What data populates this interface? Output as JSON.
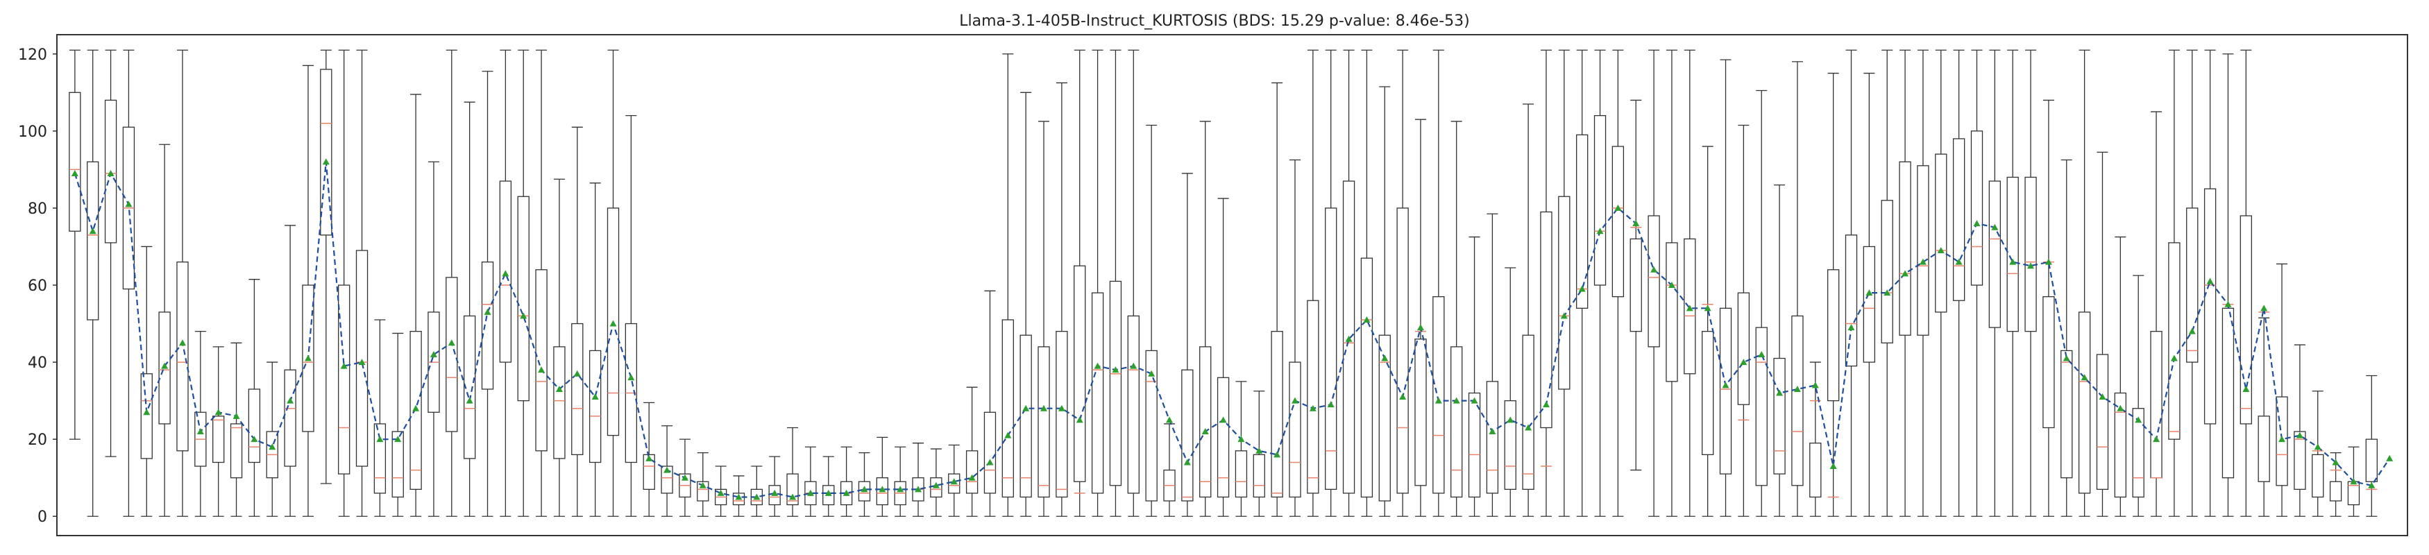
{
  "chart_data": {
    "type": "box",
    "title": "Llama-3.1-405B-Instruct_KURTOSIS (BDS: 15.29 p-value: 8.46e-53)",
    "xlabel": "",
    "ylabel": "",
    "ylim": [
      -5,
      125
    ],
    "yticks": [
      0,
      20,
      40,
      60,
      80,
      100,
      120
    ],
    "grid": false,
    "colors": {
      "box": "#333333",
      "median": "#e8826a",
      "mean_marker": "#2ca02c",
      "mean_line": "#1f4e9c"
    },
    "means": [
      89,
      74,
      89,
      81,
      27,
      39,
      45,
      22,
      27,
      26,
      20,
      18,
      30,
      41,
      92,
      39,
      40,
      20,
      20,
      28,
      42,
      45,
      30,
      53,
      63,
      52,
      38,
      33,
      37,
      31,
      50,
      36,
      15,
      12,
      10,
      8,
      6,
      5,
      5,
      6,
      5,
      6,
      6,
      6,
      7,
      7,
      7,
      7,
      8,
      9,
      10,
      14,
      21,
      28,
      28,
      28,
      25,
      39,
      38,
      39,
      37,
      25,
      14,
      22,
      25,
      20,
      17,
      16,
      30,
      28,
      29,
      46,
      51,
      41,
      31,
      49,
      30,
      30,
      30,
      22,
      25,
      23,
      29,
      52,
      59,
      74,
      80,
      76,
      64,
      60,
      54,
      54,
      34,
      40,
      42,
      32,
      33,
      34,
      13,
      49,
      58,
      58,
      63,
      66,
      69,
      66,
      76,
      75,
      66,
      65,
      66,
      41,
      36,
      31,
      28,
      25,
      20,
      41,
      48,
      61,
      55,
      33,
      54,
      20,
      21,
      18,
      14,
      9,
      8,
      15
    ],
    "medians": [
      90,
      73,
      89,
      80,
      30,
      38,
      40,
      20,
      25,
      23,
      18,
      16,
      28,
      40,
      102,
      23,
      40,
      10,
      10,
      12,
      40,
      36,
      28,
      55,
      60,
      52,
      35,
      30,
      28,
      26,
      32,
      32,
      13,
      10,
      8,
      7,
      5,
      4,
      4,
      5,
      4,
      6,
      6,
      6,
      6,
      6,
      6,
      7,
      7,
      8,
      9,
      12,
      10,
      10,
      8,
      7,
      6,
      38,
      37,
      38,
      35,
      8,
      5,
      9,
      10,
      9,
      8,
      6,
      14,
      10,
      17,
      45,
      51,
      40,
      23,
      48,
      21,
      12,
      16,
      12,
      13,
      11,
      13,
      52,
      59,
      74,
      80,
      75,
      62,
      60,
      52,
      55,
      33,
      25,
      40,
      17,
      22,
      30,
      5,
      50,
      54,
      58,
      63,
      65,
      69,
      65,
      70,
      72,
      63,
      66,
      66,
      40,
      35,
      18,
      27,
      10,
      10,
      22,
      43,
      60,
      55,
      28,
      53,
      16,
      20,
      17,
      12,
      8,
      7,
      13
    ],
    "box_ranges": [
      [
        74,
        110
      ],
      [
        51,
        92
      ],
      [
        71,
        108
      ],
      [
        59,
        101
      ],
      [
        15,
        37
      ],
      [
        24,
        53
      ],
      [
        17,
        66
      ],
      [
        13,
        27
      ],
      [
        14,
        26
      ],
      [
        10,
        24
      ],
      [
        14,
        33
      ],
      [
        10,
        22
      ],
      [
        13,
        38
      ],
      [
        22,
        60
      ],
      [
        73,
        116
      ],
      [
        11,
        60
      ],
      [
        13,
        69
      ],
      [
        6,
        24
      ],
      [
        5,
        22
      ],
      [
        7,
        48
      ],
      [
        27,
        53
      ],
      [
        22,
        62
      ],
      [
        15,
        52
      ],
      [
        33,
        66
      ],
      [
        40,
        87
      ],
      [
        30,
        83
      ],
      [
        17,
        64
      ],
      [
        15,
        44
      ],
      [
        16,
        50
      ],
      [
        14,
        43
      ],
      [
        21,
        80
      ],
      [
        14,
        50
      ],
      [
        7,
        16
      ],
      [
        6,
        13
      ],
      [
        5,
        11
      ],
      [
        4,
        9
      ],
      [
        3,
        7
      ],
      [
        3,
        6
      ],
      [
        3,
        7
      ],
      [
        3,
        8
      ],
      [
        3,
        11
      ],
      [
        3,
        9
      ],
      [
        3,
        8
      ],
      [
        3,
        9
      ],
      [
        4,
        9
      ],
      [
        3,
        10
      ],
      [
        3,
        9
      ],
      [
        4,
        10
      ],
      [
        5,
        10
      ],
      [
        6,
        11
      ],
      [
        6,
        17
      ],
      [
        6,
        27
      ],
      [
        5,
        51
      ],
      [
        5,
        47
      ],
      [
        5,
        44
      ],
      [
        5,
        48
      ],
      [
        9,
        65
      ],
      [
        6,
        58
      ],
      [
        8,
        61
      ],
      [
        6,
        52
      ],
      [
        4,
        43
      ],
      [
        4,
        12
      ],
      [
        4,
        38
      ],
      [
        5,
        44
      ],
      [
        5,
        36
      ],
      [
        5,
        17
      ],
      [
        5,
        16
      ],
      [
        5,
        48
      ],
      [
        5,
        40
      ],
      [
        6,
        56
      ],
      [
        7,
        80
      ],
      [
        6,
        87
      ],
      [
        5,
        67
      ],
      [
        4,
        47
      ],
      [
        6,
        80
      ],
      [
        8,
        46
      ],
      [
        6,
        57
      ],
      [
        5,
        44
      ],
      [
        5,
        32
      ],
      [
        6,
        35
      ],
      [
        7,
        30
      ],
      [
        7,
        47
      ],
      [
        23,
        79
      ],
      [
        33,
        83
      ],
      [
        54,
        99
      ],
      [
        60,
        104
      ],
      [
        57,
        96
      ],
      [
        48,
        72
      ],
      [
        44,
        78
      ],
      [
        35,
        71
      ],
      [
        37,
        72
      ],
      [
        16,
        48
      ],
      [
        11,
        54
      ],
      [
        29,
        58
      ],
      [
        8,
        49
      ],
      [
        11,
        41
      ],
      [
        8,
        52
      ],
      [
        5,
        19
      ],
      [
        30,
        64
      ],
      [
        39,
        73
      ],
      [
        40,
        70
      ],
      [
        45,
        82
      ],
      [
        47,
        92
      ],
      [
        47,
        91
      ],
      [
        53,
        94
      ],
      [
        56,
        98
      ],
      [
        60,
        100
      ],
      [
        49,
        87
      ],
      [
        48,
        88
      ],
      [
        48,
        88
      ],
      [
        23,
        57
      ],
      [
        10,
        43
      ],
      [
        6,
        53
      ],
      [
        7,
        42
      ],
      [
        5,
        32
      ],
      [
        5,
        28
      ],
      [
        10,
        48
      ],
      [
        20,
        71
      ],
      [
        40,
        80
      ],
      [
        24,
        85
      ],
      [
        10,
        54
      ],
      [
        24,
        78
      ],
      [
        9,
        26
      ],
      [
        8,
        31
      ],
      [
        7,
        22
      ],
      [
        5,
        16
      ],
      [
        4,
        9
      ],
      [
        3,
        9
      ],
      [
        9,
        20
      ]
    ]
  }
}
